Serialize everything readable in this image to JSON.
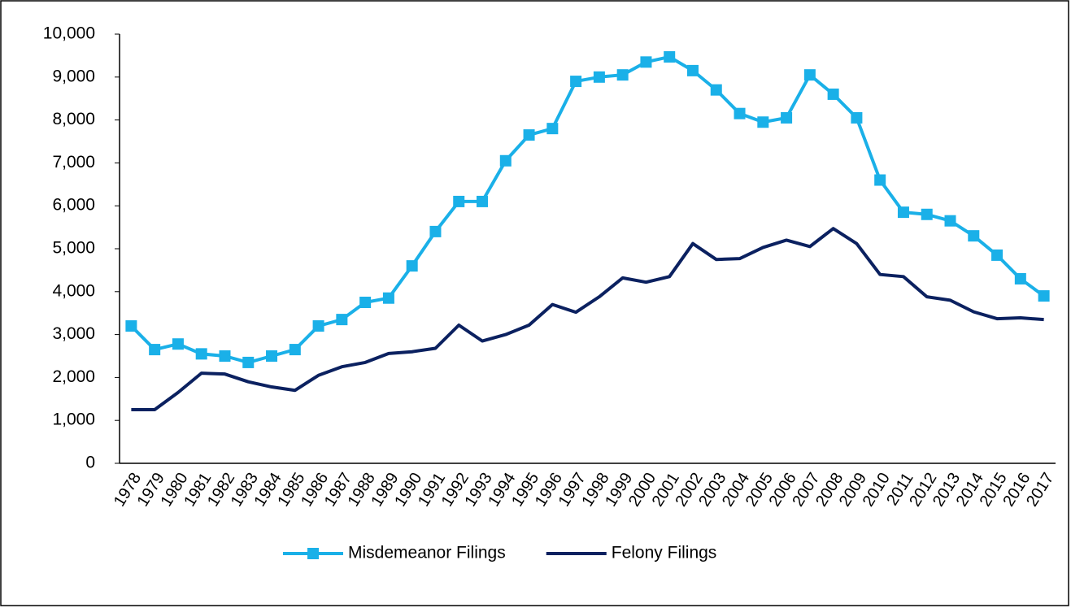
{
  "chart_data": {
    "type": "line",
    "categories": [
      "1978",
      "1979",
      "1980",
      "1981",
      "1982",
      "1983",
      "1984",
      "1985",
      "1986",
      "1987",
      "1988",
      "1989",
      "1990",
      "1991",
      "1992",
      "1993",
      "1994",
      "1995",
      "1996",
      "1997",
      "1998",
      "1999",
      "2000",
      "2001",
      "2002",
      "2003",
      "2004",
      "2005",
      "2006",
      "2007",
      "2008",
      "2009",
      "2010",
      "2011",
      "2012",
      "2013",
      "2014",
      "2015",
      "2016",
      "2017"
    ],
    "series": [
      {
        "name": "Misdemeanor Filings",
        "color": "#1ab0e8",
        "marker": "square",
        "values": [
          3200,
          2650,
          2780,
          2550,
          2500,
          2350,
          2500,
          2650,
          3200,
          3350,
          3750,
          3850,
          4600,
          5400,
          6100,
          6100,
          7050,
          7650,
          7800,
          8900,
          9000,
          9050,
          9350,
          9470,
          9150,
          8700,
          8150,
          7950,
          8050,
          9050,
          8600,
          8050,
          6600,
          5850,
          5800,
          5650,
          5300,
          4850,
          4300,
          3900
        ]
      },
      {
        "name": "Felony Filings",
        "color": "#0b2160",
        "marker": "none",
        "values": [
          1250,
          1250,
          1650,
          2100,
          2080,
          1900,
          1780,
          1700,
          2050,
          2250,
          2350,
          2560,
          2600,
          2680,
          3220,
          2850,
          3000,
          3220,
          3700,
          3520,
          3880,
          4320,
          4220,
          4350,
          5120,
          4750,
          4770,
          5030,
          5200,
          5050,
          5470,
          5120,
          4400,
          4350,
          3880,
          3800,
          3530,
          3370,
          3390,
          3350
        ]
      }
    ],
    "ylim": [
      0,
      10000
    ],
    "yticks": [
      0,
      {
        "value": 1000,
        "label": "1,000"
      },
      {
        "value": 2000,
        "label": "2,000"
      },
      {
        "value": 3000,
        "label": "3,000"
      },
      {
        "value": 4000,
        "label": "4,000"
      },
      {
        "value": 5000,
        "label": "5,000"
      },
      {
        "value": 6000,
        "label": "6,000"
      },
      {
        "value": 7000,
        "label": "7,000"
      },
      {
        "value": 8000,
        "label": "8,000"
      },
      {
        "value": 9000,
        "label": "9,000"
      },
      {
        "value": 10000,
        "label": "10,000"
      }
    ],
    "grid": false,
    "legend": "bottom"
  }
}
